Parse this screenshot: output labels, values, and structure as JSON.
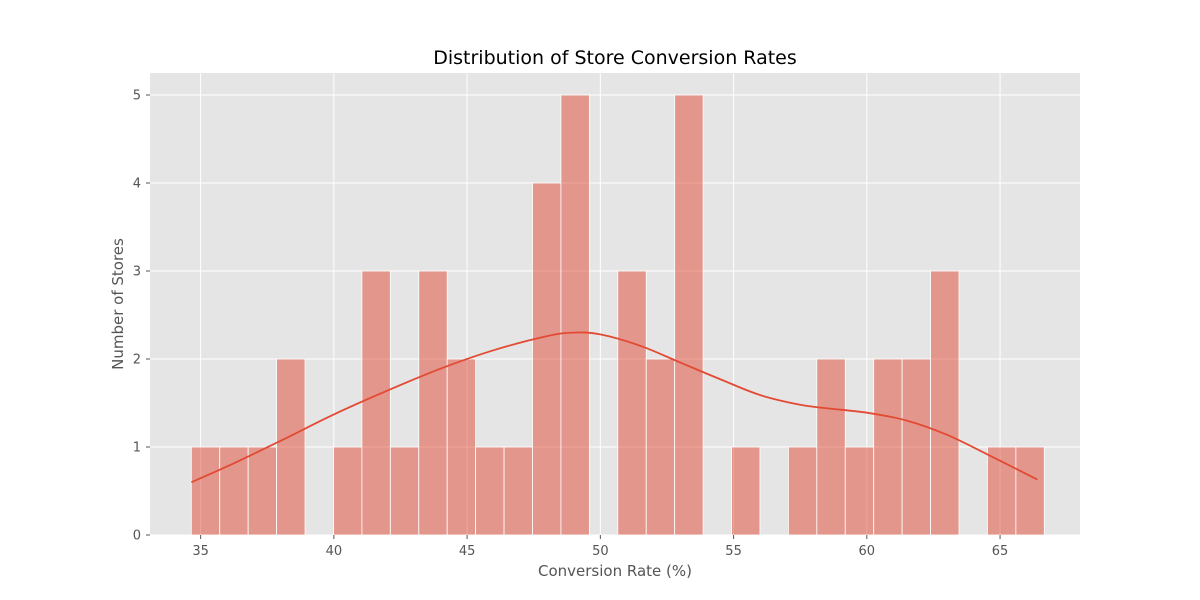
{
  "chart_data": {
    "type": "bar",
    "title": "Distribution of Store Conversion Rates",
    "xlabel": "Conversion Rate (%)",
    "ylabel": "Number of Stores",
    "xlim": [
      33.1,
      68.0
    ],
    "ylim": [
      0,
      5.25
    ],
    "xticks": [
      35,
      40,
      45,
      50,
      55,
      60,
      65
    ],
    "yticks": [
      0,
      1,
      2,
      3,
      4,
      5
    ],
    "grid": true,
    "legend": "none",
    "bins": {
      "start": 34.65,
      "width": 1.067,
      "counts": [
        1,
        1,
        1,
        2,
        0,
        1,
        3,
        1,
        3,
        2,
        1,
        1,
        4,
        5,
        0,
        3,
        2,
        5,
        0,
        1,
        0,
        1,
        2,
        1,
        2,
        2,
        3,
        0,
        1,
        1
      ]
    },
    "kde": {
      "x": [
        34.65,
        36.0,
        38.0,
        40.0,
        42.0,
        44.0,
        46.0,
        48.0,
        49.0,
        50.0,
        51.5,
        53.0,
        54.5,
        56.0,
        57.5,
        58.5,
        60.0,
        61.5,
        63.0,
        64.5,
        66.4
      ],
      "y": [
        0.6,
        0.78,
        1.07,
        1.37,
        1.64,
        1.89,
        2.1,
        2.26,
        2.3,
        2.28,
        2.15,
        1.96,
        1.77,
        1.59,
        1.48,
        1.44,
        1.39,
        1.3,
        1.14,
        0.92,
        0.63
      ]
    },
    "colors": {
      "bar": "#E24A33",
      "bar_opacity": 0.5,
      "bar_edge": "#ffffff",
      "kde_line": "#E24A33",
      "plot_background": "#E5E5E5",
      "grid": "#ffffff"
    }
  }
}
